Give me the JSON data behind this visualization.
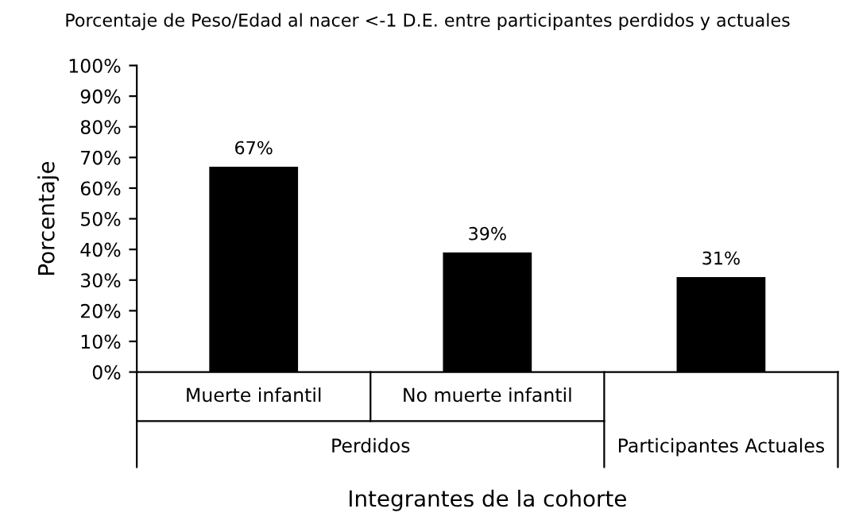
{
  "chart_data": {
    "type": "bar",
    "title": "Porcentaje de Peso/Edad al nacer <-1 D.E. entre participantes perdidos y actuales",
    "categories": [
      "Muerte infantil",
      "No muerte infantil",
      null
    ],
    "values": [
      67,
      39,
      31
    ],
    "color": "#000000",
    "value_labels": [
      "67%",
      "39%",
      "31%"
    ],
    "ylim": [
      0,
      100
    ],
    "yticks": [
      {
        "value": 0,
        "label": "0%"
      },
      {
        "value": 10,
        "label": "10%"
      },
      {
        "value": 20,
        "label": "20%"
      },
      {
        "value": 30,
        "label": "30%"
      },
      {
        "value": 40,
        "label": "40%"
      },
      {
        "value": 50,
        "label": "50%"
      },
      {
        "value": 60,
        "label": "60%"
      },
      {
        "value": 70,
        "label": "70%"
      },
      {
        "value": 80,
        "label": "80%"
      },
      {
        "value": 90,
        "label": "90%"
      },
      {
        "value": 100,
        "label": "100%"
      }
    ],
    "ylabel": "Porcentaje",
    "xlabel": "Integrantes de la cohorte",
    "annotations": [
      "Perdidos",
      "Participantes Actuales"
    ],
    "grid": false
  }
}
